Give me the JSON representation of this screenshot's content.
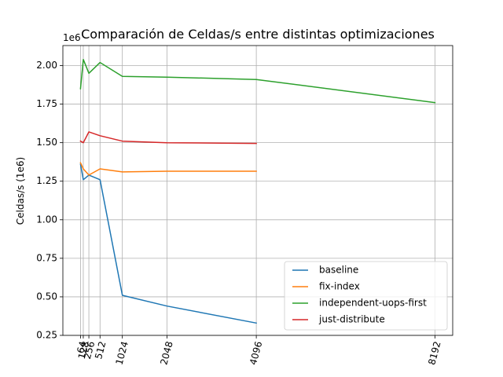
{
  "chart_data": {
    "type": "line",
    "title": "Comparación de Celdas/s entre distintas optimizaciones",
    "xlabel": "",
    "ylabel": "Celdas/s (1e6)",
    "y_offset_label": "1e6",
    "x_ticks": [
      64,
      128,
      256,
      512,
      1024,
      2048,
      4096,
      8192
    ],
    "y_ticks": [
      "0.25",
      "0.50",
      "0.75",
      "1.00",
      "1.25",
      "1.50",
      "1.75",
      "2.00"
    ],
    "y_tick_values": [
      0.25,
      0.5,
      0.75,
      1.0,
      1.25,
      1.5,
      1.75,
      2.0
    ],
    "xlim": [
      -340,
      8600
    ],
    "ylim": [
      0.25,
      2.13
    ],
    "grid": true,
    "legend_position": "lower-right",
    "series": [
      {
        "name": "baseline",
        "color": "#1f77b4",
        "x": [
          64,
          128,
          256,
          512,
          1024,
          2048,
          4096
        ],
        "y": [
          1.36,
          1.26,
          1.29,
          1.26,
          0.51,
          0.44,
          0.33
        ]
      },
      {
        "name": "fix-index",
        "color": "#ff7f0e",
        "x": [
          64,
          128,
          256,
          512,
          1024,
          2048,
          4096
        ],
        "y": [
          1.37,
          1.33,
          1.29,
          1.33,
          1.31,
          1.315,
          1.315
        ]
      },
      {
        "name": "independent-uops-first",
        "color": "#2ca02c",
        "x": [
          64,
          128,
          256,
          512,
          1024,
          2048,
          4096,
          8192
        ],
        "y": [
          1.85,
          2.04,
          1.95,
          2.02,
          1.93,
          1.925,
          1.91,
          1.76
        ]
      },
      {
        "name": "just-distribute",
        "color": "#d62728",
        "x": [
          64,
          128,
          256,
          512,
          1024,
          2048,
          4096
        ],
        "y": [
          1.51,
          1.5,
          1.57,
          1.545,
          1.51,
          1.5,
          1.495
        ]
      }
    ]
  }
}
